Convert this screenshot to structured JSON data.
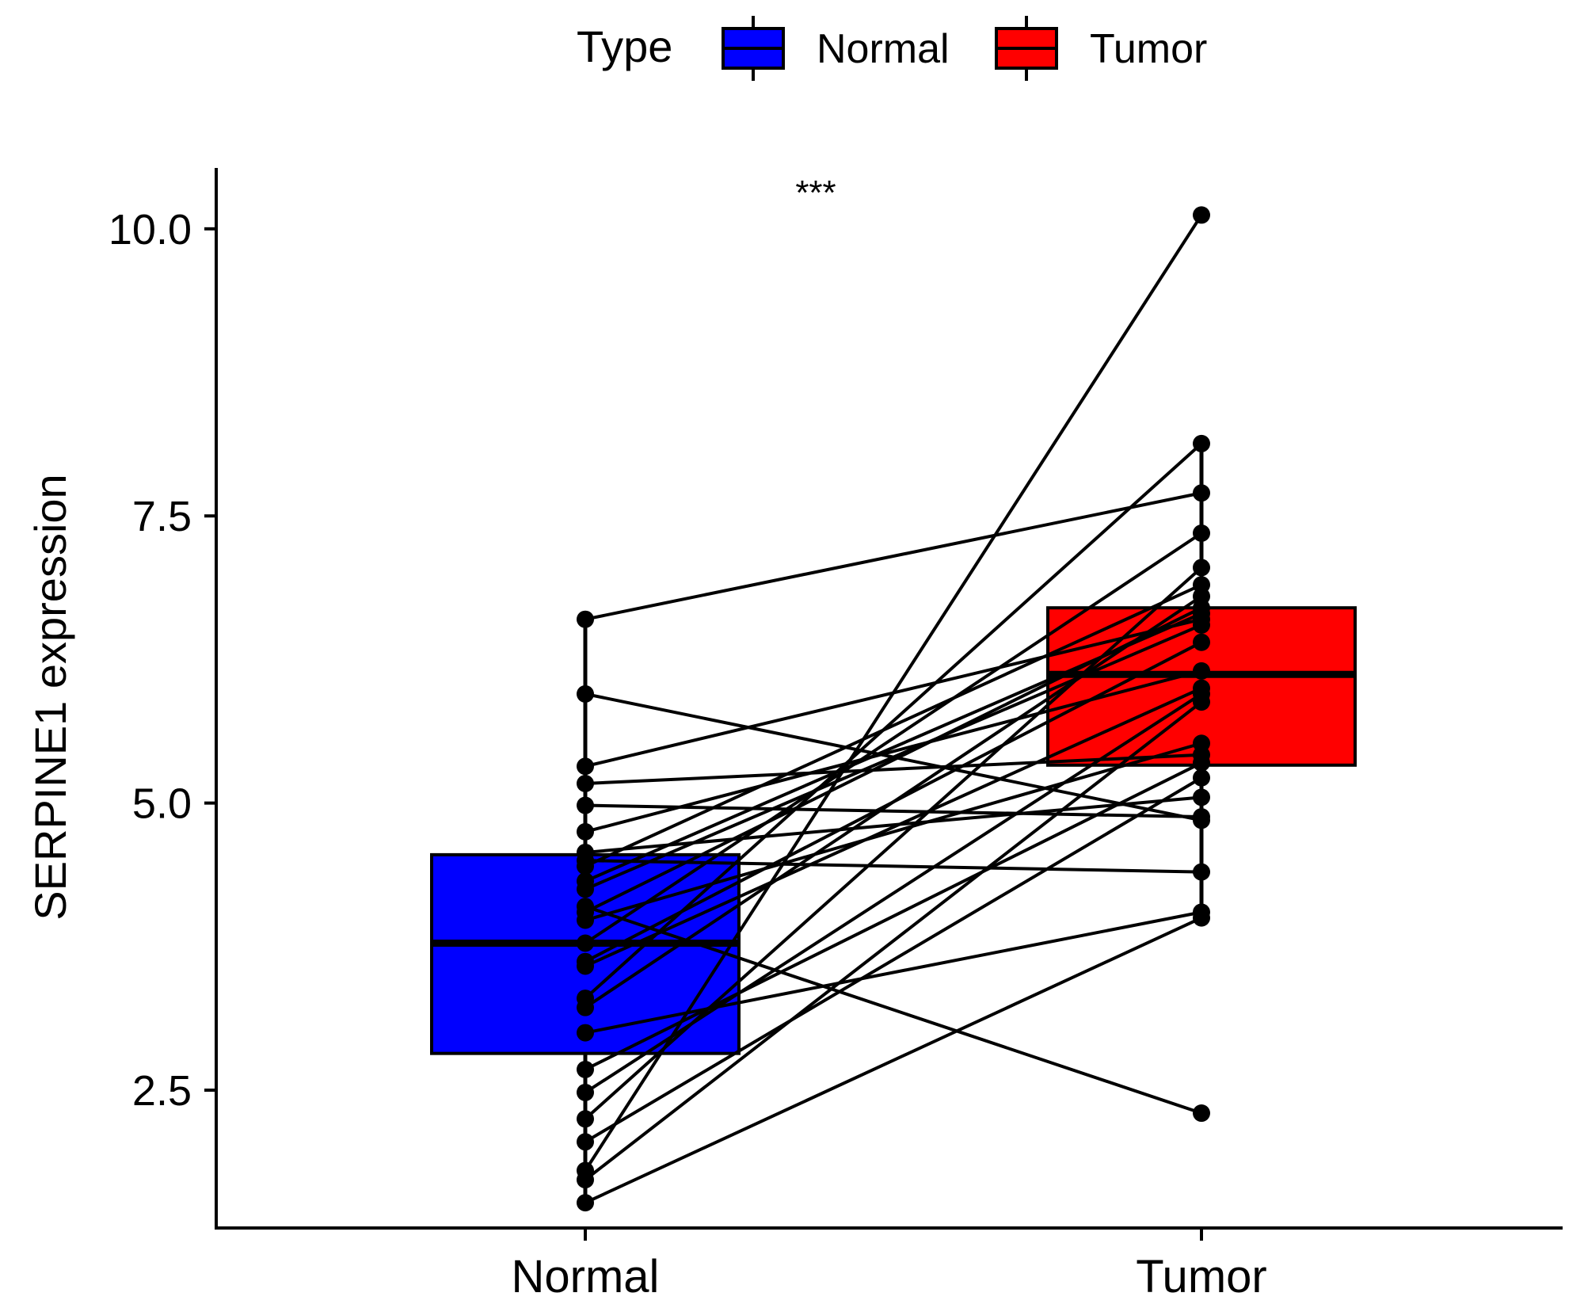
{
  "chart_data": {
    "type": "boxplot-paired",
    "ylabel": "SERPINE1 expression",
    "xlabel": "",
    "categories": [
      "Normal",
      "Tumor"
    ],
    "yticks": [
      "2.5",
      "5.0",
      "7.5",
      "10.0"
    ],
    "ytick_values": [
      2.5,
      5.0,
      7.5,
      10.0
    ],
    "ylim": [
      1.3,
      10.53
    ],
    "significance": "***",
    "legend": {
      "title": "Type",
      "position": "top",
      "items": [
        {
          "label": "Normal",
          "color": "#0000ff"
        },
        {
          "label": "Tumor",
          "color": "#ff0000"
        }
      ]
    },
    "boxes": [
      {
        "name": "Normal",
        "color": "#0000ff",
        "whisker_low": 1.52,
        "q1": 2.82,
        "median": 3.78,
        "q3": 4.55,
        "whisker_high": 6.6
      },
      {
        "name": "Tumor",
        "color": "#ff0000",
        "whisker_low": 3.99,
        "q1": 5.33,
        "median": 6.12,
        "q3": 6.7,
        "whisker_high": 8.13
      }
    ],
    "pairs": [
      {
        "normal": 6.6,
        "tumor": 7.7
      },
      {
        "normal": 5.95,
        "tumor": 4.85
      },
      {
        "normal": 5.32,
        "tumor": 6.6
      },
      {
        "normal": 5.17,
        "tumor": 5.42
      },
      {
        "normal": 4.98,
        "tumor": 4.88
      },
      {
        "normal": 4.75,
        "tumor": 6.15
      },
      {
        "normal": 4.57,
        "tumor": 5.05
      },
      {
        "normal": 4.5,
        "tumor": 4.4
      },
      {
        "normal": 4.45,
        "tumor": 6.9
      },
      {
        "normal": 4.32,
        "tumor": 6.65
      },
      {
        "normal": 4.25,
        "tumor": 6.55
      },
      {
        "normal": 4.1,
        "tumor": 2.3
      },
      {
        "normal": 4.05,
        "tumor": 6.7
      },
      {
        "normal": 3.98,
        "tumor": 5.52
      },
      {
        "normal": 3.78,
        "tumor": 7.35
      },
      {
        "normal": 3.62,
        "tumor": 6.4
      },
      {
        "normal": 3.58,
        "tumor": 6.0
      },
      {
        "normal": 3.3,
        "tumor": 8.13
      },
      {
        "normal": 3.22,
        "tumor": 6.8
      },
      {
        "normal": 3.0,
        "tumor": 4.05
      },
      {
        "normal": 2.68,
        "tumor": 5.35
      },
      {
        "normal": 2.48,
        "tumor": 5.95
      },
      {
        "normal": 2.25,
        "tumor": 7.05
      },
      {
        "normal": 2.05,
        "tumor": 5.22
      },
      {
        "normal": 1.8,
        "tumor": 10.12
      },
      {
        "normal": 1.72,
        "tumor": 5.88
      },
      {
        "normal": 1.52,
        "tumor": 4.0
      }
    ]
  }
}
